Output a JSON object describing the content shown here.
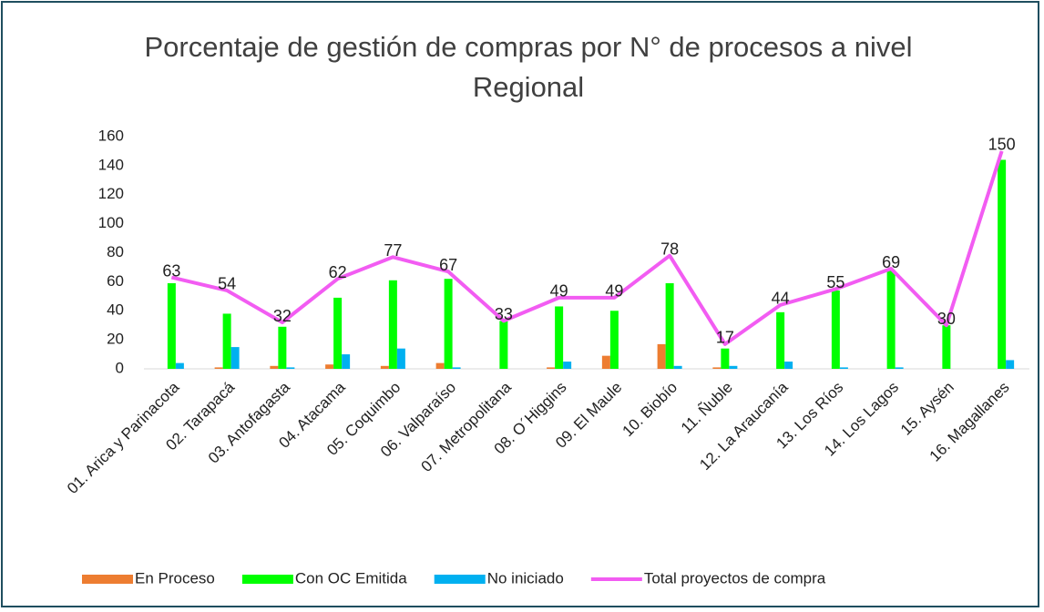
{
  "chart_data": {
    "type": "bar",
    "title": "Porcentaje de gestión de compras por N° de procesos a nivel Regional",
    "categories": [
      "01. Arica y Parinacota",
      "02. Tarapacá",
      "03. Antofagasta",
      "04. Atacama",
      "05. Coquimbo",
      "06. Valparaíso",
      "07. Metropolitana",
      "08. O´Higgins",
      "09. El Maule",
      "10. Biobío",
      "11. Ñuble",
      "12. La Araucanía",
      "13. Los Ríos",
      "14. Los Lagos",
      "15. Aysén",
      "16. Magallanes"
    ],
    "series": [
      {
        "name": "En Proceso",
        "color": "#ed7d31",
        "type": "bar",
        "values": [
          0,
          1,
          2,
          3,
          2,
          4,
          0,
          1,
          9,
          17,
          1,
          0,
          0,
          0,
          0,
          0
        ]
      },
      {
        "name": "Con OC Emitida",
        "color": "#00ff00",
        "type": "bar",
        "values": [
          59,
          38,
          29,
          49,
          61,
          62,
          33,
          43,
          40,
          59,
          14,
          39,
          54,
          68,
          30,
          144
        ]
      },
      {
        "name": "No iniciado",
        "color": "#00b0f0",
        "type": "bar",
        "values": [
          4,
          15,
          1,
          10,
          14,
          1,
          0,
          5,
          0,
          2,
          2,
          5,
          1,
          1,
          0,
          6
        ]
      },
      {
        "name": "Total proyectos de compra",
        "color": "#f25cf2",
        "type": "line",
        "values": [
          63,
          54,
          32,
          62,
          77,
          67,
          33,
          49,
          49,
          78,
          17,
          44,
          55,
          69,
          30,
          150
        ]
      }
    ],
    "ylim": [
      0,
      160
    ],
    "yticks": [
      0,
      20,
      40,
      60,
      80,
      100,
      120,
      140,
      160
    ],
    "grid": false,
    "legend": "bottom"
  }
}
